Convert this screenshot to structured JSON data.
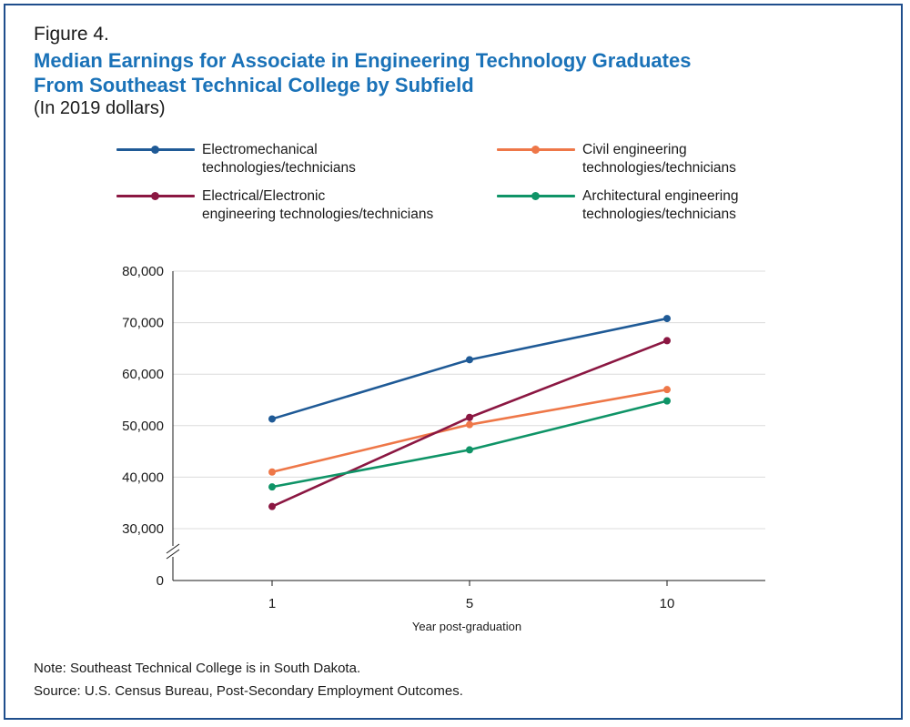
{
  "figure_label": "Figure 4.",
  "title_line1": "Median Earnings for Associate in Engineering Technology Graduates",
  "title_line2": "From Southeast Technical College by Subfield",
  "subtitle": "(In 2019 dollars)",
  "note": "Note: Southeast Technical College is in South Dakota.",
  "source": "Source: U.S. Census Bureau, Post-Secondary Employment Outcomes.",
  "chart_data": {
    "type": "line",
    "x": [
      1,
      5,
      10
    ],
    "tick_labels": [
      "1",
      "5",
      "10"
    ],
    "xlabel": "Year post-graduation",
    "ylabel": "",
    "y_ticks": [
      0,
      30000,
      40000,
      50000,
      60000,
      70000,
      80000
    ],
    "y_tick_labels": [
      "0",
      "30,000",
      "40,000",
      "50,000",
      "60,000",
      "70,000",
      "80,000"
    ],
    "ylim": [
      0,
      80000
    ],
    "y_axis_break": "between 0 and 30,000",
    "grid": "horizontal",
    "legend_placement": "top",
    "series": [
      {
        "name": "Electromechanical technologies/technicians",
        "name_lines": [
          "Electromechanical",
          "technologies/technicians"
        ],
        "color": "#1f5a96",
        "values": [
          51300,
          62800,
          70800
        ]
      },
      {
        "name": "Civil engineering technologies/technicians",
        "name_lines": [
          "Civil engineering",
          "technologies/technicians"
        ],
        "color": "#ee7748",
        "values": [
          41000,
          50200,
          57000
        ]
      },
      {
        "name": "Electrical/Electronic engineering technologies/technicians",
        "name_lines": [
          "Electrical/Electronic",
          "engineering technologies/technicians"
        ],
        "color": "#8b1742",
        "values": [
          34300,
          51600,
          66500
        ]
      },
      {
        "name": "Architectural engineering technologies/technicians",
        "name_lines": [
          "Architectural engineering",
          "technologies/technicians"
        ],
        "color": "#0f9467",
        "values": [
          38100,
          45300,
          54800
        ]
      }
    ]
  }
}
